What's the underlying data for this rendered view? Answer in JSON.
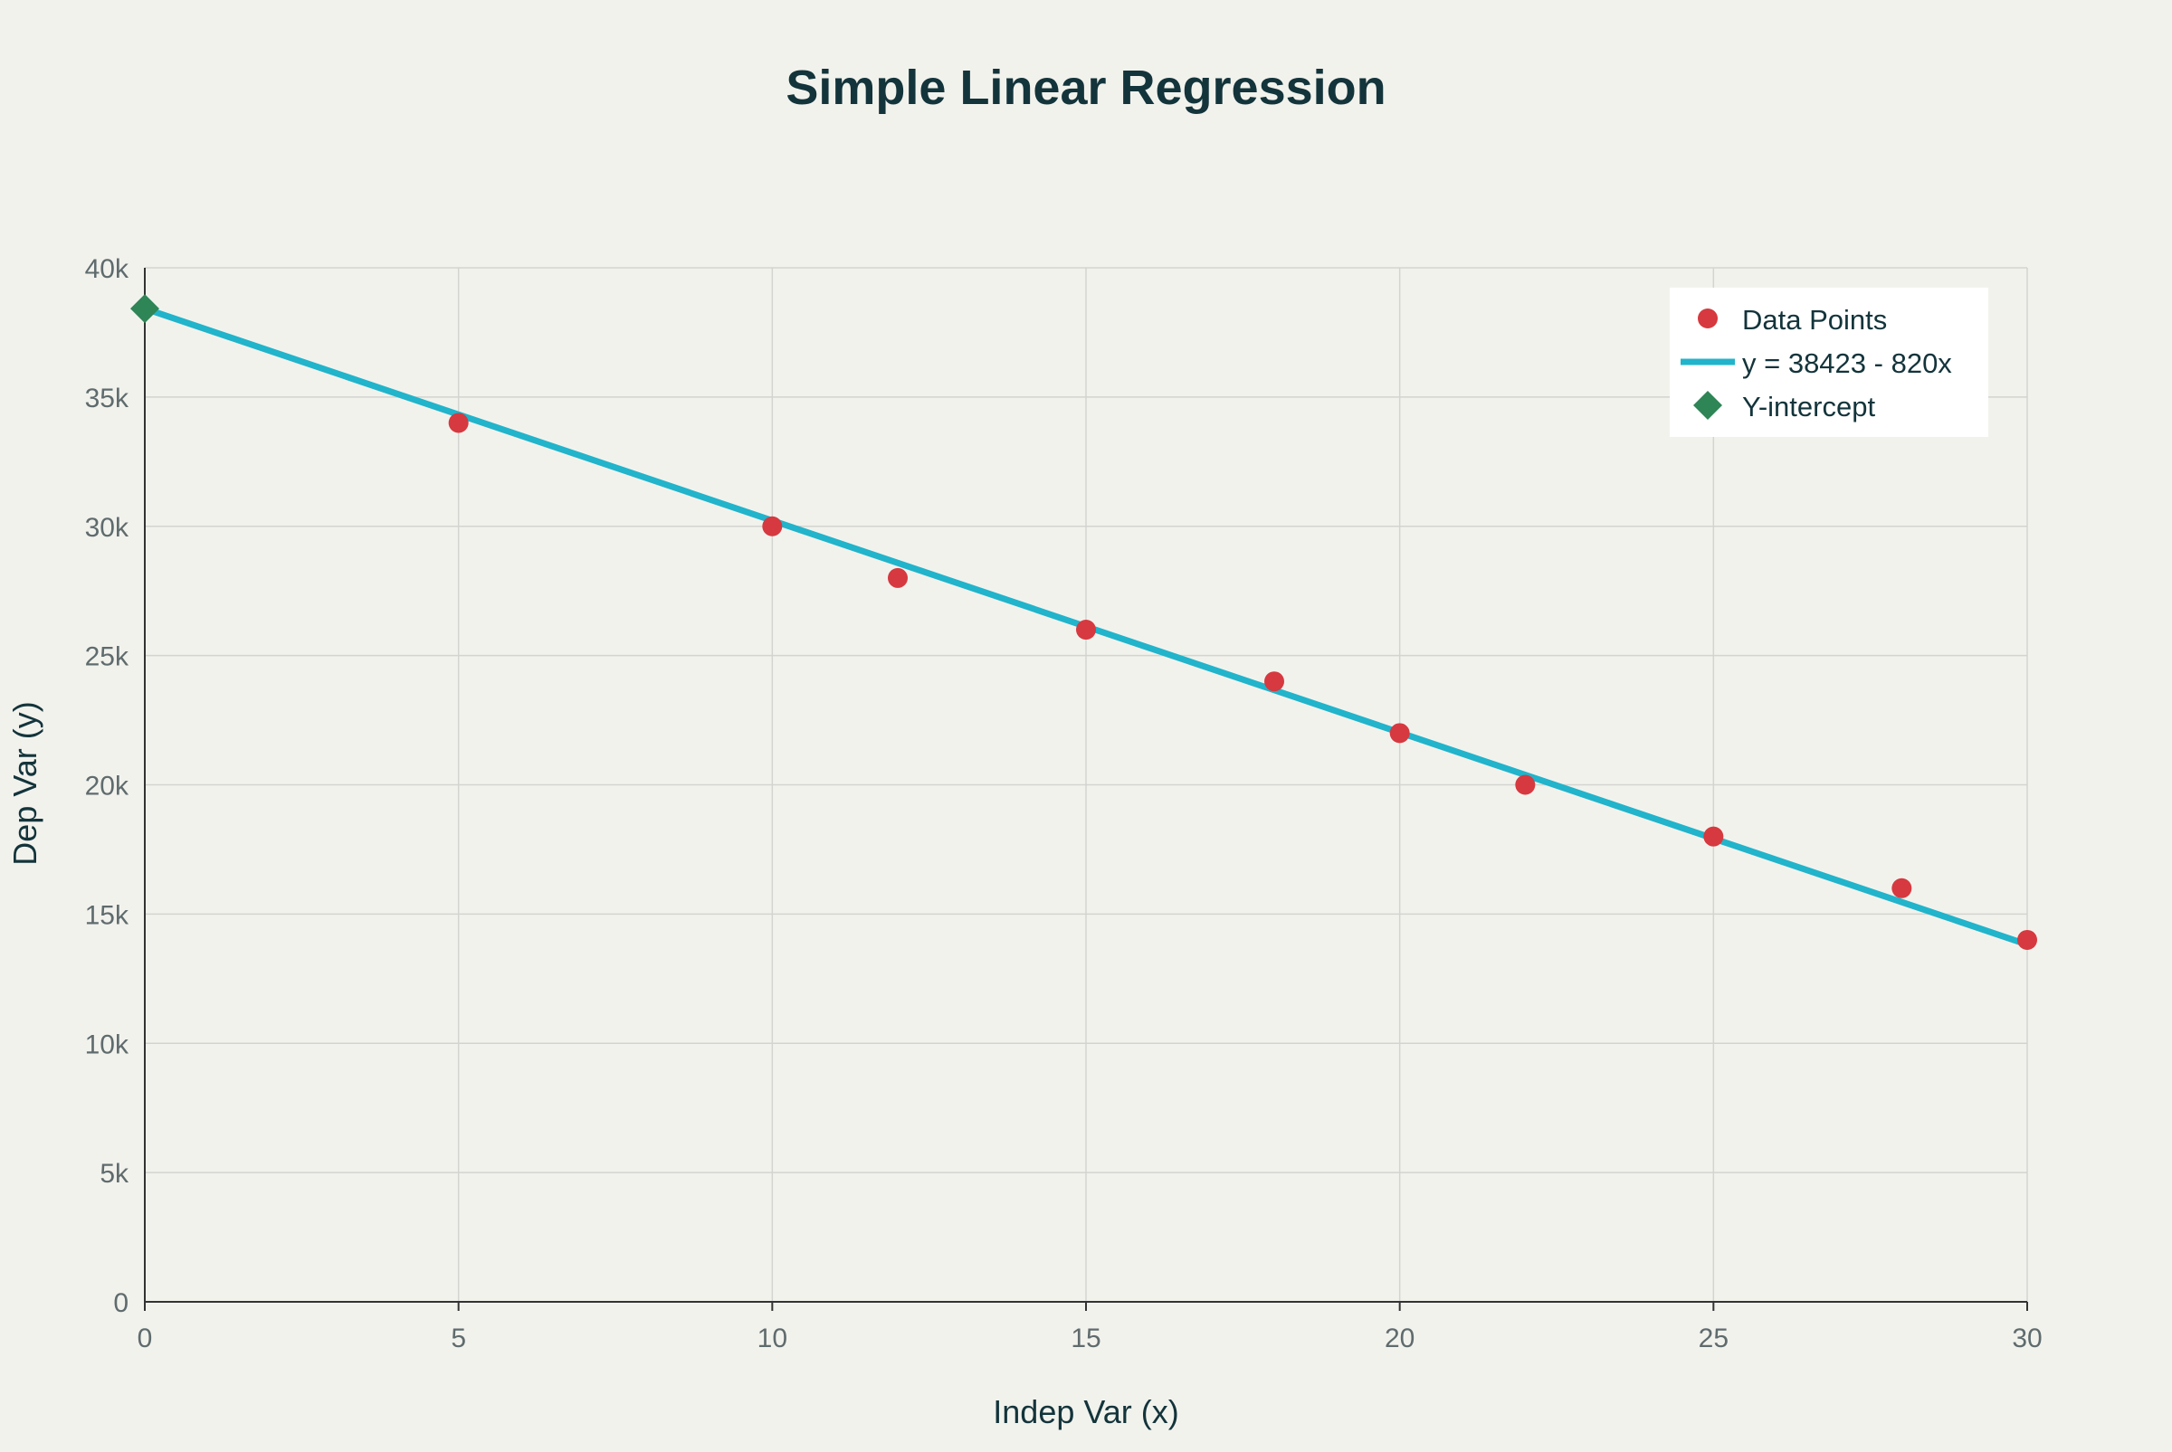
{
  "chart_data": {
    "type": "scatter",
    "title": "Simple Linear Regression",
    "xlabel": "Indep Var (x)",
    "ylabel": "Dep Var (y)",
    "xlim": [
      0,
      30
    ],
    "ylim": [
      0,
      40000
    ],
    "x_ticks": [
      0,
      5,
      10,
      15,
      20,
      25,
      30
    ],
    "x_tick_labels": [
      "0",
      "5",
      "10",
      "15",
      "20",
      "25",
      "30"
    ],
    "y_ticks": [
      0,
      5000,
      10000,
      15000,
      20000,
      25000,
      30000,
      35000,
      40000
    ],
    "y_tick_labels": [
      "0",
      "5k",
      "10k",
      "15k",
      "20k",
      "25k",
      "30k",
      "35k",
      "40k"
    ],
    "grid": true,
    "legend_position": "top-right",
    "series": [
      {
        "name": "Data Points",
        "mode": "markers",
        "marker": "circle",
        "color": "#d6393f",
        "x": [
          5,
          10,
          12,
          15,
          18,
          20,
          22,
          25,
          28,
          30
        ],
        "y": [
          34000,
          30000,
          28000,
          26000,
          24000,
          22000,
          20000,
          18000,
          16000,
          14000
        ]
      },
      {
        "name": "y = 38423 - 820x",
        "mode": "line",
        "color": "#21b4cb",
        "x": [
          0,
          30
        ],
        "y": [
          38423,
          13823
        ]
      },
      {
        "name": "Y-intercept",
        "mode": "markers",
        "marker": "diamond",
        "color": "#2e8556",
        "x": [
          0
        ],
        "y": [
          38423
        ]
      }
    ]
  },
  "colors": {
    "background": "#f2f2ed",
    "grid": "#d3d4d0",
    "axis": "#333333",
    "text": "#13343b",
    "tick_text": "#5f6b6d",
    "legend_bg": "#ffffff"
  }
}
